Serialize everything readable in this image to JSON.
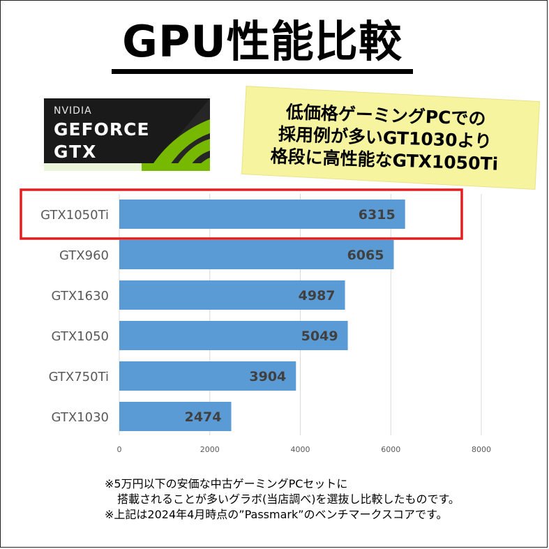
{
  "title": "GPU性能比較",
  "logo": {
    "line1": "NVIDIA",
    "line2": "GEFORCE",
    "line3": "GTX"
  },
  "note": {
    "line1": "低価格ゲーミングPCでの",
    "line2": "採用例が多いGT1030より",
    "line3": "格段に高性能なGTX1050Ti"
  },
  "footnotes": [
    "※5万円以下の安価な中古ゲーミングPCセットに",
    "搭載されることが多いグラボ(当店調べ)を選抜し比較したものです。",
    "※上記は2024年4月時点の”Passmark”のベンチマークスコアです。"
  ],
  "colors": {
    "bar": "#5b9bd5",
    "highlight": "#e02020",
    "note_bg": "#f7f4a0"
  },
  "chart_data": {
    "type": "bar",
    "orientation": "horizontal",
    "categories": [
      "GTX1050Ti",
      "GTX960",
      "GTX1630",
      "GTX1050",
      "GTX750Ti",
      "GTX1030"
    ],
    "values": [
      6315,
      6065,
      4987,
      5049,
      3904,
      2474
    ],
    "xlim": [
      0,
      8000
    ],
    "xticks": [
      0,
      2000,
      4000,
      6000,
      8000
    ],
    "grid": true,
    "highlight": "GTX1050Ti"
  }
}
